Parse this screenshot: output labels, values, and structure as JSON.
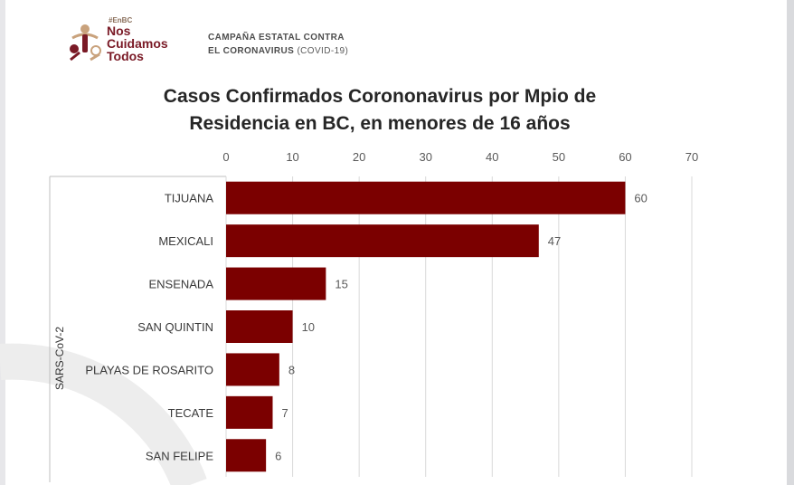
{
  "logo": {
    "hashtag": "#EnBC",
    "line1": "Nos",
    "line2": "Cuidamos",
    "line3": "Todos"
  },
  "campaign": {
    "line1": "CAMPAÑA ESTATAL CONTRA",
    "line2_bold": "EL CORONAVIRUS",
    "line2_rest": "(COVID-19)"
  },
  "colors": {
    "bar": "#7b0000",
    "brand": "#7a1a26",
    "grid": "#d9d9d9"
  },
  "chart_data": {
    "type": "bar",
    "orientation": "horizontal",
    "title_line1": "Casos Confirmados Corononavirus por Mpio de",
    "title_line2": "Residencia en BC, en menores de 16 años",
    "group_label": "SARS-CoV-2",
    "categories": [
      "TIJUANA",
      "MEXICALI",
      "ENSENADA",
      "SAN QUINTIN",
      "PLAYAS DE ROSARITO",
      "TECATE",
      "SAN FELIPE"
    ],
    "values": [
      60,
      47,
      15,
      10,
      8,
      7,
      6
    ],
    "xlim": [
      0,
      70
    ],
    "ticks": [
      0,
      10,
      20,
      30,
      40,
      50,
      60,
      70
    ],
    "axis_position": "top",
    "grid": true
  }
}
